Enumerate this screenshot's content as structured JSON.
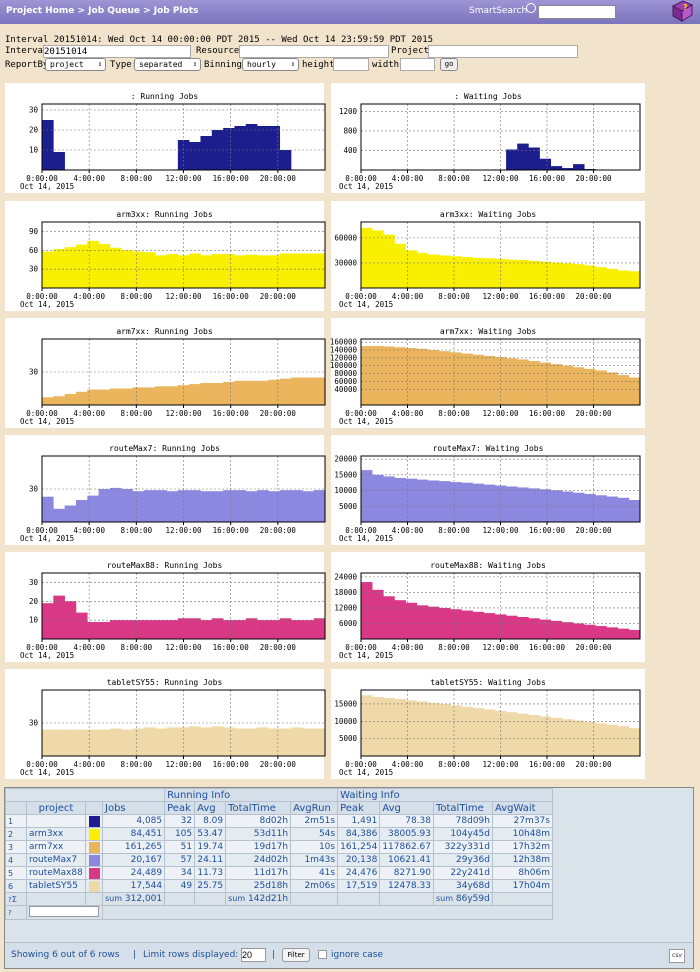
{
  "header": {
    "breadcrumb": "Project Home > Job Queue > Job Plots",
    "smartsearch_label": "SmartSearch",
    "smartsearch_value": ""
  },
  "form": {
    "interval_summary": "Interval 20151014: Wed Oct 14 00:00:00 PDT 2015 -- Wed Oct 14 23:59:59 PDT 2015",
    "interval_label": "Interval:",
    "interval_value": "20151014",
    "resource_label": "Resource:",
    "resource_value": "",
    "projects_label": "Projects:",
    "projects_value": "",
    "reportby_label": "ReportBy:",
    "reportby_value": "project",
    "type_label": "Type:",
    "type_value": "separated",
    "binning_label": "Binning:",
    "binning_value": "hourly",
    "height_label": "height:",
    "height_value": "",
    "width_label": "width:",
    "width_value": "",
    "go_label": "go"
  },
  "x_ticks": [
    "0:00:00",
    "4:00:00",
    "8:00:00",
    "12:00:00",
    "16:00:00",
    "20:00:00"
  ],
  "x_date": "Oct 14, 2015",
  "colors": {
    "all": "#1b1e8c",
    "arm3xx": "#f8f000",
    "arm7xx": "#eab55d",
    "routeMax7": "#8c88df",
    "routeMax88": "#d83885",
    "tabletSY55": "#f0d9a9"
  },
  "charts": [
    {
      "title": ": Running Jobs",
      "color": "#1b1e8c",
      "ylim": [
        0,
        33
      ],
      "yticks": [
        "10",
        "20",
        "30"
      ],
      "values": [
        25,
        9,
        0,
        0,
        0,
        0,
        0,
        0,
        0,
        0,
        0,
        0,
        15,
        14,
        17,
        20,
        21,
        22,
        23,
        22,
        22,
        10,
        0,
        0,
        0
      ]
    },
    {
      "title": ": Waiting Jobs",
      "color": "#1b1e8c",
      "ylim": [
        0,
        1350
      ],
      "yticks": [
        "400",
        "800",
        "1200"
      ],
      "values": [
        0,
        0,
        0,
        0,
        0,
        0,
        0,
        0,
        0,
        0,
        0,
        0,
        0,
        420,
        540,
        460,
        230,
        80,
        40,
        120,
        20,
        0,
        0,
        0,
        0
      ]
    },
    {
      "title": "arm3xx: Running Jobs",
      "color": "#f8f000",
      "ylim": [
        0,
        105
      ],
      "yticks": [
        "30",
        "60",
        "90"
      ],
      "values": [
        58,
        62,
        65,
        69,
        75,
        70,
        64,
        60,
        58,
        57,
        52,
        54,
        52,
        55,
        52,
        54,
        54,
        52,
        53,
        52,
        52,
        55,
        55,
        55,
        55
      ]
    },
    {
      "title": "arm3xx: Waiting Jobs",
      "color": "#f8f000",
      "ylim": [
        0,
        79000
      ],
      "yticks": [
        "30000",
        "60000"
      ],
      "values": [
        72000,
        69000,
        64000,
        53000,
        45000,
        42000,
        40000,
        39000,
        38000,
        37000,
        36000,
        35500,
        35000,
        34000,
        33500,
        32500,
        31500,
        30500,
        29500,
        28500,
        27000,
        25000,
        23000,
        21000,
        20000
      ]
    },
    {
      "title": "arm7xx: Running Jobs",
      "color": "#eab55d",
      "ylim": [
        0,
        60
      ],
      "yticks": [
        "30"
      ],
      "values": [
        7,
        8,
        10,
        12,
        14,
        14,
        15,
        15,
        16,
        16,
        17,
        17,
        18,
        19,
        20,
        20,
        21,
        22,
        22,
        22,
        23,
        24,
        25,
        25,
        25
      ]
    },
    {
      "title": "arm7xx: Waiting Jobs",
      "color": "#eab55d",
      "ylim": [
        0,
        168000
      ],
      "yticks": [
        "40000",
        "60000",
        "80000",
        "100000",
        "120000",
        "140000",
        "160000"
      ],
      "values": [
        150000,
        150000,
        149000,
        147000,
        145000,
        143000,
        140000,
        137000,
        134000,
        131000,
        128000,
        125000,
        122000,
        119000,
        116000,
        112000,
        108000,
        104000,
        100000,
        96000,
        92000,
        88000,
        83000,
        76000,
        70000
      ]
    },
    {
      "title": "routeMax7: Running Jobs",
      "color": "#8c88df",
      "ylim": [
        0,
        60
      ],
      "yticks": [
        "30"
      ],
      "values": [
        23,
        12,
        15,
        20,
        24,
        30,
        31,
        30,
        28,
        29,
        29,
        28,
        29,
        29,
        28,
        28,
        29,
        29,
        28,
        29,
        28,
        29,
        29,
        28,
        29
      ]
    },
    {
      "title": "routeMax7: Waiting Jobs",
      "color": "#8c88df",
      "ylim": [
        0,
        21000
      ],
      "yticks": [
        "5000",
        "10000",
        "15000",
        "20000"
      ],
      "values": [
        16500,
        15000,
        14500,
        14000,
        13800,
        13500,
        13200,
        13000,
        12700,
        12500,
        12200,
        11900,
        11600,
        11300,
        11000,
        10700,
        10400,
        10100,
        9700,
        9300,
        8900,
        8500,
        8100,
        7700,
        7000
      ]
    },
    {
      "title": "routeMax88: Running Jobs",
      "color": "#d83885",
      "ylim": [
        0,
        35
      ],
      "yticks": [
        "10",
        "20",
        "30"
      ],
      "values": [
        19,
        23,
        20,
        14,
        9,
        9,
        10,
        10,
        10,
        10,
        10,
        10,
        11,
        11,
        10,
        11,
        10,
        10,
        11,
        10,
        10,
        11,
        10,
        10,
        11
      ]
    },
    {
      "title": "routeMax88: Waiting Jobs",
      "color": "#d83885",
      "ylim": [
        0,
        25500
      ],
      "yticks": [
        "6000",
        "12000",
        "18000",
        "24000"
      ],
      "values": [
        22000,
        19000,
        16500,
        15000,
        14000,
        13000,
        12500,
        12000,
        11500,
        11000,
        10500,
        10000,
        9500,
        9000,
        8500,
        8000,
        7500,
        7000,
        6500,
        6000,
        5500,
        5000,
        4500,
        4000,
        3500
      ]
    },
    {
      "title": "tabletSY55: Running Jobs",
      "color": "#f0d9a9",
      "ylim": [
        0,
        60
      ],
      "yticks": [
        "30"
      ],
      "values": [
        24,
        24,
        24,
        24,
        24,
        24,
        25,
        24,
        25,
        26,
        25,
        26,
        26,
        27,
        26,
        27,
        26,
        25,
        25,
        26,
        25,
        25,
        26,
        25,
        25
      ]
    },
    {
      "title": "tabletSY55: Waiting Jobs",
      "color": "#f0d9a9",
      "ylim": [
        0,
        19000
      ],
      "yticks": [
        "5000",
        "10000",
        "15000"
      ],
      "values": [
        17500,
        17000,
        16700,
        16400,
        16000,
        15700,
        15300,
        15000,
        14600,
        14200,
        13800,
        13400,
        13000,
        12600,
        12200,
        11800,
        11400,
        11000,
        10600,
        10200,
        9800,
        9400,
        9000,
        8600,
        8000
      ]
    }
  ],
  "table": {
    "group_running": "Running Info",
    "group_waiting": "Waiting Info",
    "headers": {
      "project": "project",
      "jobs": "Jobs",
      "peak": "Peak",
      "avg": "Avg",
      "totaltime": "TotalTime",
      "avgrun": "AvgRun",
      "wpeak": "Peak",
      "wavg": "Avg",
      "wtotaltime": "TotalTime",
      "avgwait": "AvgWait"
    },
    "rows": [
      {
        "idx": "1",
        "project": "",
        "color": "#1b1e8c",
        "jobs": "4,085",
        "peak": "32",
        "avg": "8.09",
        "totaltime": "8d02h",
        "avgrun": "2m51s",
        "wpeak": "1,491",
        "wavg": "78.38",
        "wtotaltime": "78d09h",
        "avgwait": "27m37s"
      },
      {
        "idx": "2",
        "project": "arm3xx",
        "color": "#f8f000",
        "jobs": "84,451",
        "peak": "105",
        "avg": "53.47",
        "totaltime": "53d11h",
        "avgrun": "54s",
        "wpeak": "84,386",
        "wavg": "38005.93",
        "wtotaltime": "104y45d",
        "avgwait": "10h48m"
      },
      {
        "idx": "3",
        "project": "arm7xx",
        "color": "#eab55d",
        "jobs": "161,265",
        "peak": "51",
        "avg": "19.74",
        "totaltime": "19d17h",
        "avgrun": "10s",
        "wpeak": "161,254",
        "wavg": "117862.67",
        "wtotaltime": "322y331d",
        "avgwait": "17h32m"
      },
      {
        "idx": "4",
        "project": "routeMax7",
        "color": "#8c88df",
        "jobs": "20,167",
        "peak": "57",
        "avg": "24.11",
        "totaltime": "24d02h",
        "avgrun": "1m43s",
        "wpeak": "20,138",
        "wavg": "10621.41",
        "wtotaltime": "29y36d",
        "avgwait": "12h38m"
      },
      {
        "idx": "5",
        "project": "routeMax88",
        "color": "#d83885",
        "jobs": "24,489",
        "peak": "34",
        "avg": "11.73",
        "totaltime": "11d17h",
        "avgrun": "41s",
        "wpeak": "24,476",
        "wavg": "8271.90",
        "wtotaltime": "22y241d",
        "avgwait": "8h06m"
      },
      {
        "idx": "6",
        "project": "tabletSY55",
        "color": "#f0d9a9",
        "jobs": "17,544",
        "peak": "49",
        "avg": "25.75",
        "totaltime": "25d18h",
        "avgrun": "2m06s",
        "wpeak": "17,519",
        "wavg": "12478.33",
        "wtotaltime": "34y68d",
        "avgwait": "17h04m"
      }
    ],
    "sum_label": "sum",
    "sum_jobs": "312,001",
    "sum_totaltime": "142d21h",
    "sum_wtotaltime": "86y59d",
    "sigma": "Σ"
  },
  "footer": {
    "showing": "Showing 6 out of 6 rows",
    "limit_label": "Limit rows displayed:",
    "limit_value": "20",
    "sep": "|",
    "filter_label": "Filter",
    "ignore_case": "ignore case",
    "csv": "csv"
  }
}
